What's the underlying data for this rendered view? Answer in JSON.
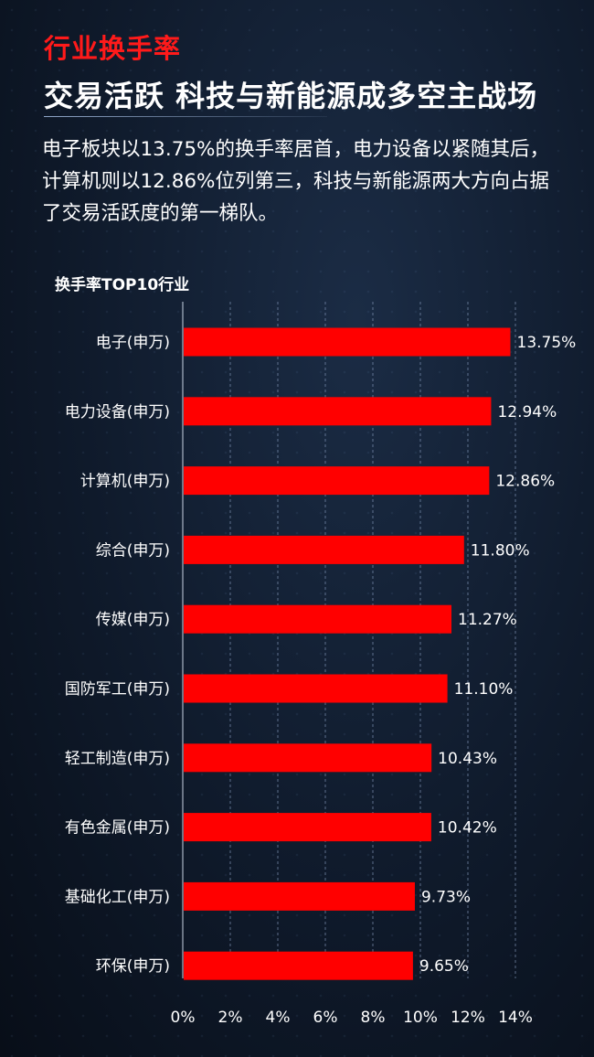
{
  "header": {
    "kicker": "行业换手率",
    "headline": "交易活跃 科技与新能源成多空主战场",
    "description": "电子板块以13.75%的换手率居首，电力设备以紧随其后，计算机则以12.86%位列第三，科技与新能源两大方向占据了交易活跃度的第一梯队。"
  },
  "colors": {
    "bar": "#ff0000",
    "kicker": "#ff1a1a",
    "grid": "#7f93b4"
  },
  "chart_data": {
    "type": "bar",
    "orientation": "horizontal",
    "title": "换手率TOP10行业",
    "categories": [
      "电子(申万)",
      "电力设备(申万)",
      "计算机(申万)",
      "综合(申万)",
      "传媒(申万)",
      "国防军工(申万)",
      "轻工制造(申万)",
      "有色金属(申万)",
      "基础化工(申万)",
      "环保(申万)"
    ],
    "values": [
      13.75,
      12.94,
      12.86,
      11.8,
      11.27,
      11.1,
      10.43,
      10.42,
      9.73,
      9.65
    ],
    "value_labels": [
      "13.75%",
      "12.94%",
      "12.86%",
      "11.80%",
      "11.27%",
      "11.10%",
      "10.43%",
      "10.42%",
      "9.73%",
      "9.65%"
    ],
    "xlim": [
      0,
      14
    ],
    "xticks": [
      "0%",
      "2%",
      "4%",
      "6%",
      "8%",
      "10%",
      "12%",
      "14%"
    ],
    "grid": true,
    "xlabel": "",
    "ylabel": ""
  }
}
